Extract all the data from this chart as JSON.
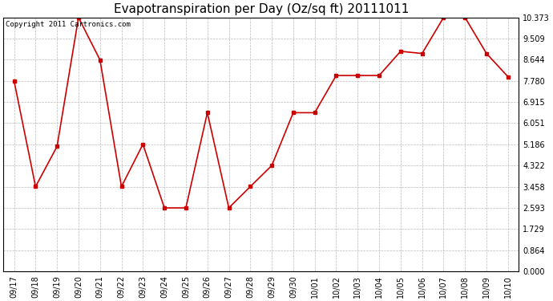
{
  "title": "Evapotranspiration per Day (Oz/sq ft) 20111011",
  "copyright_text": "Copyright 2011 Cartronics.com",
  "dates": [
    "09/17",
    "09/18",
    "09/19",
    "09/20",
    "09/21",
    "09/22",
    "09/23",
    "09/24",
    "09/25",
    "09/26",
    "09/27",
    "09/28",
    "09/29",
    "09/30",
    "10/01",
    "10/02",
    "10/03",
    "10/04",
    "10/05",
    "10/06",
    "10/07",
    "10/08",
    "10/09",
    "10/10"
  ],
  "values": [
    7.78,
    3.46,
    5.1,
    10.37,
    8.64,
    3.46,
    5.19,
    2.59,
    2.59,
    6.48,
    2.59,
    3.46,
    4.32,
    6.48,
    6.48,
    8.0,
    8.0,
    8.0,
    8.99,
    8.9,
    10.37,
    10.37,
    8.9,
    7.95
  ],
  "yticks": [
    0.0,
    0.864,
    1.729,
    2.593,
    3.458,
    4.322,
    5.186,
    6.051,
    6.915,
    7.78,
    8.644,
    9.509,
    10.373
  ],
  "ymin": 0.0,
  "ymax": 10.373,
  "line_color": "#cc0000",
  "marker": "s",
  "marker_size": 3,
  "background_color": "#ffffff",
  "plot_bg_color": "#ffffff",
  "grid_color": "#bbbbbb",
  "title_fontsize": 11,
  "tick_fontsize": 7,
  "copyright_fontsize": 6.5
}
